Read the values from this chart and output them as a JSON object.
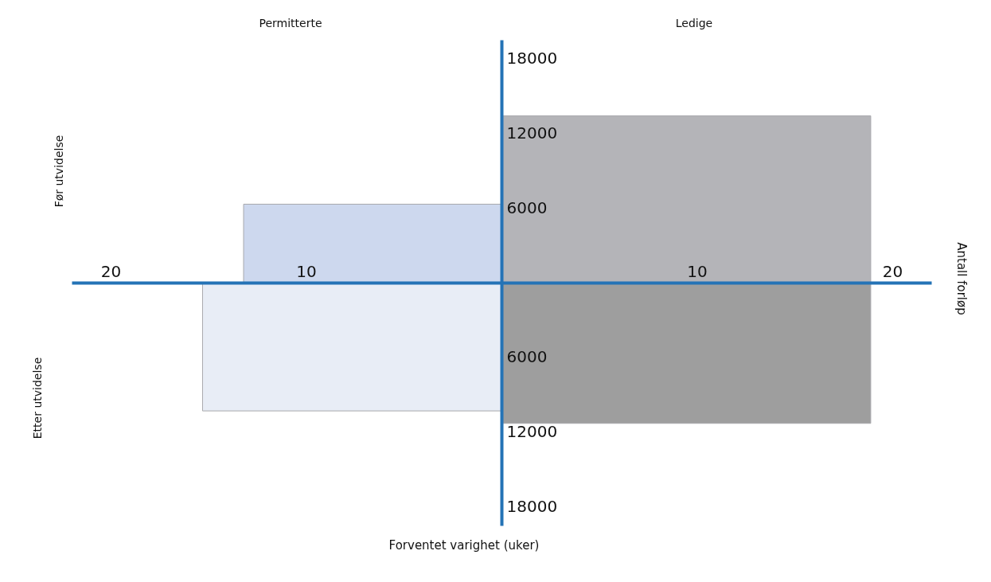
{
  "chart_data": {
    "type": "area",
    "xlabel": "Forventet varighet (uker)",
    "ylabel": "Antall forløp",
    "annotations": [
      "Permitterte",
      "Ledige",
      "Før utvidelse",
      "Etter utvidelse"
    ],
    "series": [
      {
        "color": "#cdd8ee",
        "x": [
          -13.2,
          0
        ],
        "values": [
          6300,
          6300
        ]
      },
      {
        "color": "#b4b4b8",
        "x": [
          0,
          18.9
        ],
        "values": [
          13400,
          13400
        ]
      },
      {
        "color": "#e8edf6",
        "x": [
          -15.3,
          0
        ],
        "values": [
          -10300,
          -10300
        ]
      },
      {
        "color": "#9e9e9e",
        "x": [
          0,
          18.9
        ],
        "values": [
          -11300,
          -11300
        ]
      }
    ],
    "xlim": [
      -22,
      22
    ],
    "ylim": [
      -19500,
      19500
    ],
    "xticks": [
      {
        "value": -20,
        "label": "20"
      },
      {
        "value": -10,
        "label": "10"
      },
      10,
      20
    ],
    "yticks": [
      {
        "value": -18000,
        "label": "18000"
      },
      {
        "value": -12000,
        "label": "12000"
      },
      {
        "value": -6000,
        "label": "6000"
      },
      6000,
      12000,
      18000
    ]
  }
}
